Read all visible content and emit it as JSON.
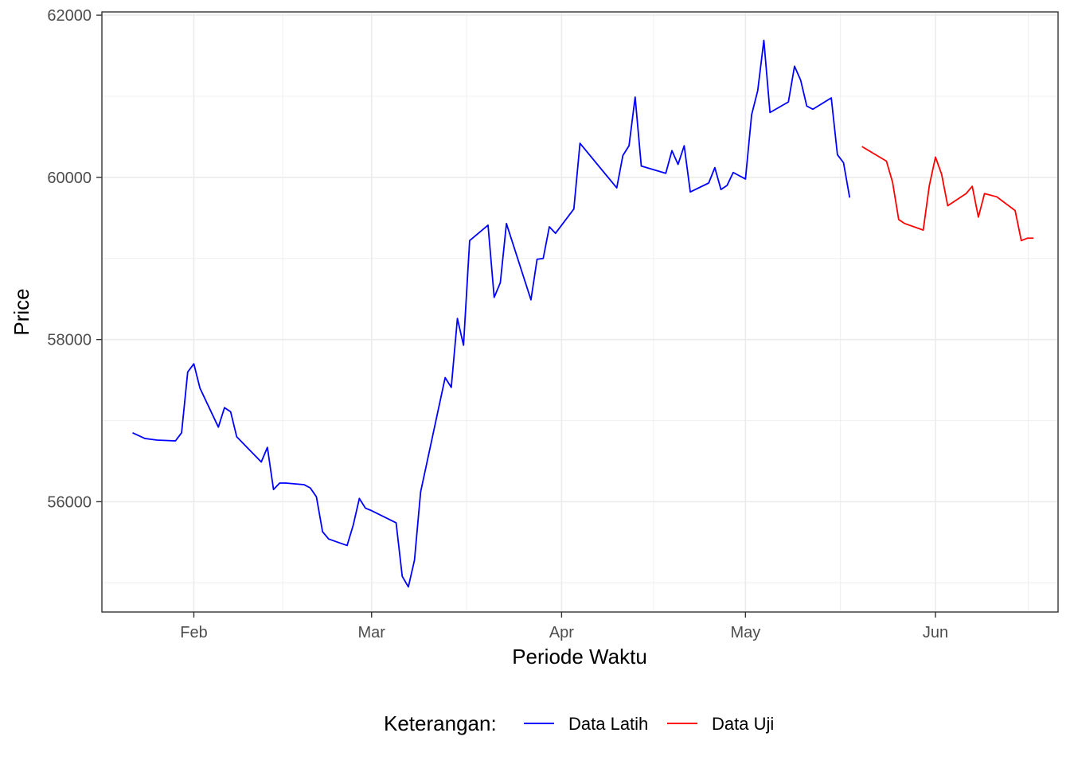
{
  "chart_data": {
    "type": "line",
    "title": "",
    "xlabel": "Periode Waktu",
    "ylabel": "Price",
    "x_type": "date",
    "xlim": [
      "2024-01-17",
      "2024-06-21"
    ],
    "ylim": [
      54640,
      62040
    ],
    "x_ticks": [
      {
        "date": "2024-02-01",
        "label": "Feb"
      },
      {
        "date": "2024-03-01",
        "label": "Mar"
      },
      {
        "date": "2024-04-01",
        "label": "Apr"
      },
      {
        "date": "2024-05-01",
        "label": "May"
      },
      {
        "date": "2024-06-01",
        "label": "Jun"
      }
    ],
    "y_ticks": [
      56000,
      58000,
      60000,
      62000
    ],
    "grid": true,
    "legend": {
      "title": "Keterangan:",
      "position": "bottom",
      "entries": [
        "Data Latih",
        "Data Uji"
      ]
    },
    "series": [
      {
        "name": "Data Latih",
        "color": "#0000ff",
        "points": [
          [
            "2024-01-22",
            56850
          ],
          [
            "2024-01-24",
            56780
          ],
          [
            "2024-01-25",
            56770
          ],
          [
            "2024-01-26",
            56760
          ],
          [
            "2024-01-29",
            56750
          ],
          [
            "2024-01-30",
            56850
          ],
          [
            "2024-01-31",
            57600
          ],
          [
            "2024-02-01",
            57700
          ],
          [
            "2024-02-02",
            57400
          ],
          [
            "2024-02-05",
            56920
          ],
          [
            "2024-02-06",
            57160
          ],
          [
            "2024-02-07",
            57110
          ],
          [
            "2024-02-08",
            56800
          ],
          [
            "2024-02-12",
            56490
          ],
          [
            "2024-02-13",
            56670
          ],
          [
            "2024-02-14",
            56150
          ],
          [
            "2024-02-15",
            56230
          ],
          [
            "2024-02-16",
            56230
          ],
          [
            "2024-02-19",
            56210
          ],
          [
            "2024-02-20",
            56170
          ],
          [
            "2024-02-21",
            56060
          ],
          [
            "2024-02-22",
            55630
          ],
          [
            "2024-02-23",
            55540
          ],
          [
            "2024-02-26",
            55460
          ],
          [
            "2024-02-27",
            55710
          ],
          [
            "2024-02-28",
            56040
          ],
          [
            "2024-02-29",
            55920
          ],
          [
            "2024-03-01",
            55890
          ],
          [
            "2024-03-05",
            55740
          ],
          [
            "2024-03-06",
            55080
          ],
          [
            "2024-03-07",
            54950
          ],
          [
            "2024-03-08",
            55280
          ],
          [
            "2024-03-09",
            56120
          ],
          [
            "2024-03-13",
            57530
          ],
          [
            "2024-03-14",
            57410
          ],
          [
            "2024-03-15",
            58260
          ],
          [
            "2024-03-16",
            57930
          ],
          [
            "2024-03-17",
            59220
          ],
          [
            "2024-03-20",
            59410
          ],
          [
            "2024-03-21",
            58520
          ],
          [
            "2024-03-22",
            58700
          ],
          [
            "2024-03-23",
            59430
          ],
          [
            "2024-03-27",
            58490
          ],
          [
            "2024-03-28",
            58990
          ],
          [
            "2024-03-29",
            59000
          ],
          [
            "2024-03-30",
            59390
          ],
          [
            "2024-03-31",
            59310
          ],
          [
            "2024-04-03",
            59610
          ],
          [
            "2024-04-04",
            60420
          ],
          [
            "2024-04-10",
            59870
          ],
          [
            "2024-04-11",
            60270
          ],
          [
            "2024-04-12",
            60390
          ],
          [
            "2024-04-13",
            60990
          ],
          [
            "2024-04-14",
            60140
          ],
          [
            "2024-04-18",
            60050
          ],
          [
            "2024-04-19",
            60330
          ],
          [
            "2024-04-20",
            60160
          ],
          [
            "2024-04-21",
            60390
          ],
          [
            "2024-04-22",
            59820
          ],
          [
            "2024-04-25",
            59930
          ],
          [
            "2024-04-26",
            60120
          ],
          [
            "2024-04-27",
            59850
          ],
          [
            "2024-04-28",
            59900
          ],
          [
            "2024-04-29",
            60060
          ],
          [
            "2024-05-01",
            59980
          ],
          [
            "2024-05-02",
            60770
          ],
          [
            "2024-05-03",
            61070
          ],
          [
            "2024-05-04",
            61690
          ],
          [
            "2024-05-05",
            60800
          ],
          [
            "2024-05-08",
            60930
          ],
          [
            "2024-05-09",
            61370
          ],
          [
            "2024-05-10",
            61200
          ],
          [
            "2024-05-11",
            60880
          ],
          [
            "2024-05-12",
            60840
          ],
          [
            "2024-05-15",
            60980
          ],
          [
            "2024-05-16",
            60280
          ],
          [
            "2024-05-17",
            60180
          ],
          [
            "2024-05-18",
            59750
          ]
        ]
      },
      {
        "name": "Data Uji",
        "color": "#ff0000",
        "points": [
          [
            "2024-05-20",
            60380
          ],
          [
            "2024-05-24",
            60200
          ],
          [
            "2024-05-25",
            59940
          ],
          [
            "2024-05-26",
            59480
          ],
          [
            "2024-05-27",
            59430
          ],
          [
            "2024-05-30",
            59350
          ],
          [
            "2024-05-31",
            59900
          ],
          [
            "2024-06-01",
            60250
          ],
          [
            "2024-06-02",
            60040
          ],
          [
            "2024-06-03",
            59650
          ],
          [
            "2024-06-06",
            59800
          ],
          [
            "2024-06-07",
            59890
          ],
          [
            "2024-06-08",
            59510
          ],
          [
            "2024-06-09",
            59800
          ],
          [
            "2024-06-11",
            59760
          ],
          [
            "2024-06-14",
            59590
          ],
          [
            "2024-06-15",
            59220
          ],
          [
            "2024-06-16",
            59250
          ],
          [
            "2024-06-17",
            59250
          ]
        ]
      }
    ]
  }
}
